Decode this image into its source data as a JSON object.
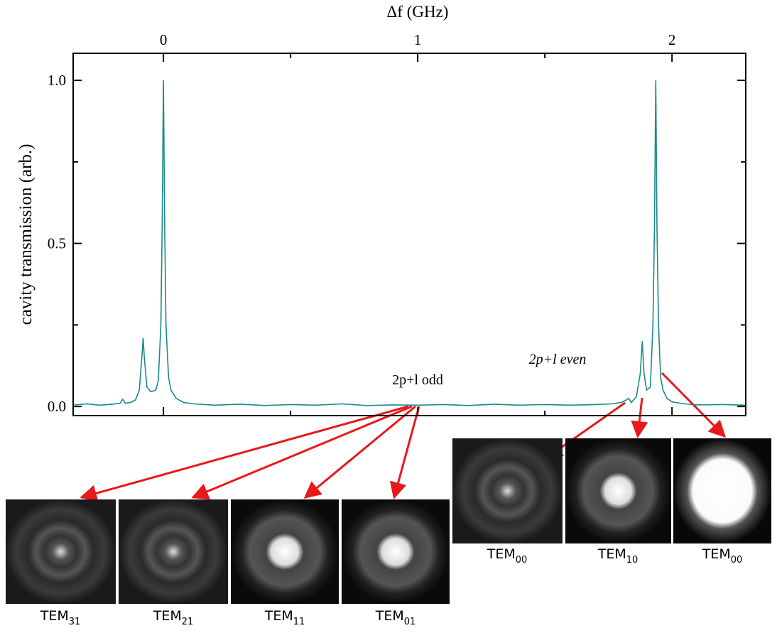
{
  "chart_data": {
    "type": "line",
    "x_label": "Δf (GHz)",
    "y_label": "cavity transmission (arb.)",
    "xlim": [
      -0.355,
      2.29
    ],
    "ylim": [
      -0.028,
      1.083
    ],
    "xticks": [
      0,
      1,
      2
    ],
    "xminorticks": [
      0.5,
      1.5
    ],
    "yticks": [
      {
        "value": 0,
        "label": "0.0"
      },
      {
        "value": 0.5,
        "label": "0.5"
      },
      {
        "value": 1,
        "label": "1.0"
      }
    ],
    "yminorticks": [
      0.25,
      0.75
    ],
    "series": [
      {
        "color": "#1a8a8a",
        "x": [
          -0.35,
          -0.3,
          -0.25,
          -0.2,
          -0.17,
          -0.16,
          -0.15,
          -0.13,
          -0.11,
          -0.095,
          -0.085,
          -0.08,
          -0.075,
          -0.065,
          -0.05,
          -0.03,
          -0.02,
          -0.01,
          -0.005,
          0,
          0.005,
          0.01,
          0.02,
          0.03,
          0.05,
          0.08,
          0.12,
          0.2,
          0.3,
          0.4,
          0.5,
          0.6,
          0.7,
          0.8,
          0.9,
          1.0,
          1.1,
          1.2,
          1.3,
          1.4,
          1.5,
          1.6,
          1.7,
          1.76,
          1.8,
          1.82,
          1.83,
          1.84,
          1.86,
          1.875,
          1.883,
          1.89,
          1.9,
          1.915,
          1.925,
          1.931,
          1.936,
          1.941,
          1.947,
          1.955,
          1.965,
          1.98,
          2.0,
          2.05,
          2.1,
          2.2,
          2.29
        ],
        "values": [
          0.005,
          0.008,
          0.004,
          0.007,
          0.01,
          0.022,
          0.01,
          0.012,
          0.02,
          0.05,
          0.15,
          0.21,
          0.15,
          0.06,
          0.045,
          0.05,
          0.08,
          0.25,
          0.55,
          1.0,
          0.55,
          0.25,
          0.09,
          0.05,
          0.025,
          0.012,
          0.008,
          0.004,
          0.007,
          0.003,
          0.006,
          0.004,
          0.008,
          0.003,
          0.005,
          0.004,
          0.006,
          0.003,
          0.007,
          0.004,
          0.006,
          0.004,
          0.006,
          0.008,
          0.012,
          0.02,
          0.025,
          0.012,
          0.03,
          0.1,
          0.2,
          0.1,
          0.05,
          0.06,
          0.25,
          0.55,
          1.0,
          0.55,
          0.25,
          0.09,
          0.05,
          0.025,
          0.014,
          0.008,
          0.005,
          0.006,
          0.004
        ]
      }
    ],
    "annotations": [
      "2p+l odd",
      "2p+l even"
    ],
    "mode_images": [
      {
        "base": "TEM",
        "sub": "31"
      },
      {
        "base": "TEM",
        "sub": "21"
      },
      {
        "base": "TEM",
        "sub": "11"
      },
      {
        "base": "TEM",
        "sub": "01"
      },
      {
        "base": "TEM",
        "sub": "00"
      },
      {
        "base": "TEM",
        "sub": "10"
      },
      {
        "base": "TEM",
        "sub": "00"
      }
    ]
  }
}
